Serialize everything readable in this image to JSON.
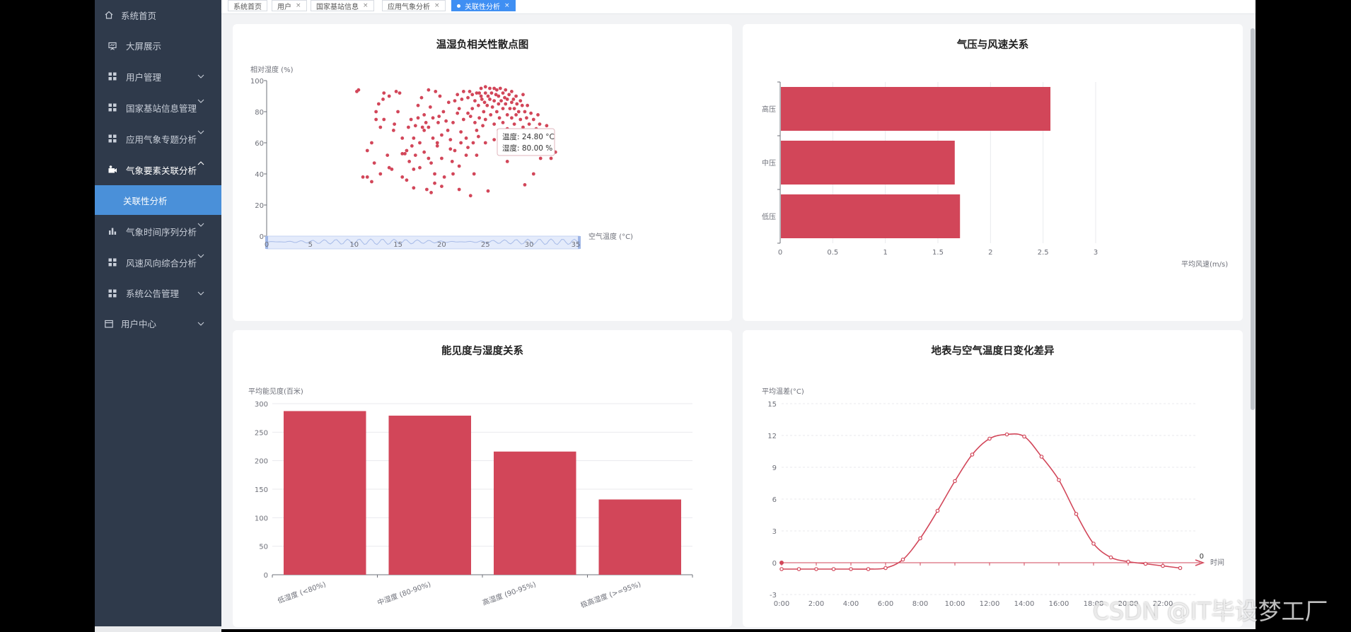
{
  "sidebar": {
    "items": [
      {
        "label": "系统首页",
        "icon": "home-icon",
        "chevron": false
      },
      {
        "label": "大屏展示",
        "icon": "presentation-icon",
        "chevron": false
      },
      {
        "label": "用户管理",
        "icon": "grid-icon",
        "chevron": "down"
      },
      {
        "label": "国家基站信息管理",
        "icon": "grid-icon",
        "chevron": "down"
      },
      {
        "label": "应用气象专题分析",
        "icon": "grid-icon",
        "chevron": "down"
      },
      {
        "label": "气象要素关联分析",
        "icon": "camera-icon",
        "chevron": "up"
      },
      {
        "label": "关联性分析",
        "icon": "",
        "chevron": false
      },
      {
        "label": "气象时间序列分析",
        "icon": "bar-chart-icon",
        "chevron": "down"
      },
      {
        "label": "风速风向综合分析",
        "icon": "grid-icon",
        "chevron": "down"
      },
      {
        "label": "系统公告管理",
        "icon": "grid-icon",
        "chevron": "down"
      },
      {
        "label": "用户中心",
        "icon": "calendar-icon",
        "chevron": "down"
      }
    ]
  },
  "tabs": [
    {
      "label": "系统首页",
      "closable": false,
      "active": false
    },
    {
      "label": "用户",
      "closable": true,
      "active": false
    },
    {
      "label": "国家基站信息",
      "closable": true,
      "active": false
    },
    {
      "label": "应用气象分析",
      "closable": true,
      "active": false
    },
    {
      "label": "关联性分析",
      "closable": true,
      "active": true
    }
  ],
  "close_glyph": "×",
  "colors": {
    "accent": "#3f8ff3",
    "series": "#d24659",
    "sidebar_bg": "#2f3a4b"
  },
  "chart_data": [
    {
      "type": "scatter",
      "title": "温湿负相关性散点图",
      "xlabel": "空气温度 (°C)",
      "ylabel": "相对湿度 (%)",
      "xlim": [
        0,
        35
      ],
      "ylim": [
        0,
        100
      ],
      "xticks": [
        "0",
        "5",
        "10",
        "15",
        "20",
        "25",
        "30",
        "35"
      ],
      "yticks": [
        "0",
        "20",
        "40",
        "60",
        "80",
        "100"
      ],
      "tooltip": {
        "lines": [
          "温度: 24.80 °C",
          "湿度: 80.00 %"
        ]
      },
      "has_datazoom": true,
      "points": [
        [
          10.3,
          93
        ],
        [
          10.5,
          94
        ],
        [
          11,
          38
        ],
        [
          11.5,
          38
        ],
        [
          11.5,
          55
        ],
        [
          12,
          35
        ],
        [
          12,
          60
        ],
        [
          12.3,
          47
        ],
        [
          12.5,
          75
        ],
        [
          12.5,
          80
        ],
        [
          12.8,
          85
        ],
        [
          13,
          70
        ],
        [
          13,
          40
        ],
        [
          13.4,
          75
        ],
        [
          13.3,
          88
        ],
        [
          13.4,
          92
        ],
        [
          13.8,
          52
        ],
        [
          14,
          44
        ],
        [
          14,
          90
        ],
        [
          14.3,
          43
        ],
        [
          14.5,
          68
        ],
        [
          14.8,
          93
        ],
        [
          15.2,
          92
        ],
        [
          15.5,
          63
        ],
        [
          15.5,
          38
        ],
        [
          15.5,
          53
        ],
        [
          15.8,
          53
        ],
        [
          16,
          55
        ],
        [
          16,
          36
        ],
        [
          16.2,
          70
        ],
        [
          16.3,
          48
        ],
        [
          16.5,
          75
        ],
        [
          16.6,
          58
        ],
        [
          16.8,
          43
        ],
        [
          16.8,
          31
        ],
        [
          17,
          71
        ],
        [
          17,
          52
        ],
        [
          17.3,
          76
        ],
        [
          17.3,
          84
        ],
        [
          17.5,
          60
        ],
        [
          17.5,
          44
        ],
        [
          17.8,
          70
        ],
        [
          18,
          54
        ],
        [
          18,
          68
        ],
        [
          18,
          78
        ],
        [
          18.2,
          73
        ],
        [
          18.3,
          30
        ],
        [
          18.5,
          94
        ],
        [
          18.5,
          50
        ],
        [
          18.5,
          70
        ],
        [
          18.8,
          47
        ],
        [
          18.8,
          28
        ],
        [
          19,
          76
        ],
        [
          19,
          63
        ],
        [
          19.2,
          40
        ],
        [
          19.2,
          34
        ],
        [
          19.3,
          93
        ],
        [
          19.5,
          60
        ],
        [
          19.5,
          58
        ],
        [
          19.6,
          73
        ],
        [
          19.7,
          77
        ],
        [
          19.8,
          90
        ],
        [
          20,
          65
        ],
        [
          20,
          50
        ],
        [
          20,
          32
        ],
        [
          20.2,
          80
        ],
        [
          20.3,
          38
        ],
        [
          20.5,
          74
        ],
        [
          20.8,
          86
        ],
        [
          21,
          62
        ],
        [
          21,
          56
        ],
        [
          21.2,
          48
        ],
        [
          21.3,
          73
        ],
        [
          21.3,
          40
        ],
        [
          21.5,
          87
        ],
        [
          21.5,
          55
        ],
        [
          21.8,
          79
        ],
        [
          22,
          45
        ],
        [
          22,
          82
        ],
        [
          22,
          30
        ],
        [
          22.2,
          67
        ],
        [
          22.3,
          88
        ],
        [
          22.5,
          93
        ],
        [
          22.5,
          75
        ],
        [
          22.8,
          52
        ],
        [
          22.8,
          63
        ],
        [
          23,
          89
        ],
        [
          23,
          57
        ],
        [
          23,
          79
        ],
        [
          23.2,
          93
        ],
        [
          23.3,
          77
        ],
        [
          23.3,
          26
        ],
        [
          23.5,
          82
        ],
        [
          23.5,
          91
        ],
        [
          23.6,
          60
        ],
        [
          23.7,
          40
        ],
        [
          23.8,
          87
        ],
        [
          24,
          52
        ],
        [
          24,
          92
        ],
        [
          24,
          68
        ],
        [
          24.2,
          84
        ],
        [
          24.3,
          76
        ],
        [
          24.3,
          92
        ],
        [
          24.5,
          90
        ],
        [
          24.5,
          95
        ],
        [
          24.6,
          88
        ],
        [
          24.7,
          71
        ],
        [
          24.8,
          80
        ],
        [
          24.9,
          86
        ],
        [
          25,
          96
        ],
        [
          25,
          60
        ],
        [
          25,
          92
        ],
        [
          25,
          75
        ],
        [
          25.2,
          84
        ],
        [
          25.3,
          90
        ],
        [
          25.3,
          29
        ],
        [
          25.5,
          88
        ],
        [
          25.5,
          95
        ],
        [
          25.6,
          78
        ],
        [
          25.7,
          92
        ],
        [
          25.8,
          83
        ],
        [
          26,
          95
        ],
        [
          26,
          62
        ],
        [
          26,
          87
        ],
        [
          26,
          72
        ],
        [
          26.2,
          91
        ],
        [
          26.3,
          80
        ],
        [
          26.3,
          94
        ],
        [
          26.5,
          85
        ],
        [
          26.5,
          90
        ],
        [
          26.5,
          68
        ],
        [
          26.6,
          76
        ],
        [
          26.7,
          95
        ],
        [
          26.8,
          87
        ],
        [
          27,
          82
        ],
        [
          27,
          92
        ],
        [
          27,
          58
        ],
        [
          27,
          73
        ],
        [
          27.2,
          89
        ],
        [
          27.3,
          85
        ],
        [
          27.3,
          94
        ],
        [
          27.5,
          78
        ],
        [
          27.5,
          88
        ],
        [
          27.5,
          69
        ],
        [
          27.5,
          48
        ],
        [
          27.7,
          91
        ],
        [
          27.8,
          82
        ],
        [
          28,
          86
        ],
        [
          28,
          76
        ],
        [
          28,
          93
        ],
        [
          28,
          64
        ],
        [
          28.2,
          88
        ],
        [
          28.3,
          82
        ],
        [
          28.3,
          72
        ],
        [
          28.5,
          90
        ],
        [
          28.5,
          78
        ],
        [
          28.5,
          60
        ],
        [
          28.6,
          85
        ],
        [
          28.7,
          67
        ],
        [
          28.8,
          80
        ],
        [
          29,
          87
        ],
        [
          29,
          75
        ],
        [
          29,
          62
        ],
        [
          29,
          55
        ],
        [
          29.2,
          84
        ],
        [
          29.3,
          70
        ],
        [
          29.3,
          91
        ],
        [
          29.5,
          80
        ],
        [
          29.5,
          65
        ],
        [
          29.5,
          33
        ],
        [
          29.7,
          76
        ],
        [
          29.8,
          84
        ],
        [
          30,
          72
        ],
        [
          30,
          67
        ],
        [
          30,
          57
        ],
        [
          30.2,
          79
        ],
        [
          30.3,
          64
        ],
        [
          30.5,
          75
        ],
        [
          30.5,
          40
        ],
        [
          30.8,
          69
        ],
        [
          30.8,
          55
        ],
        [
          31,
          78
        ],
        [
          31,
          62
        ],
        [
          31.2,
          72
        ],
        [
          31.3,
          50
        ],
        [
          31.5,
          68
        ],
        [
          31.5,
          60
        ],
        [
          31.8,
          64
        ],
        [
          32,
          66
        ],
        [
          32,
          71
        ],
        [
          32.2,
          57
        ],
        [
          32.3,
          62
        ],
        [
          32.5,
          50
        ],
        [
          33,
          54
        ],
        [
          14.6,
          72
        ],
        [
          15,
          80
        ],
        [
          16.8,
          63
        ],
        [
          18.7,
          83
        ],
        [
          20.7,
          68
        ],
        [
          22.2,
          60
        ],
        [
          24.2,
          64
        ],
        [
          26.8,
          65
        ],
        [
          23.8,
          73
        ],
        [
          21.8,
          91
        ],
        [
          17.7,
          89
        ]
      ]
    },
    {
      "type": "bar",
      "orientation": "horizontal",
      "title": "气压与风速关系",
      "categories": [
        "高压",
        "中压",
        "低压"
      ],
      "values": [
        2.57,
        1.66,
        1.71
      ],
      "xlabel": "平均风速(m/s)",
      "xlim": [
        0,
        3
      ],
      "xticks": [
        "0",
        "0.5",
        "1",
        "1.5",
        "2",
        "2.5",
        "3"
      ]
    },
    {
      "type": "bar",
      "title": "能见度与湿度关系",
      "categories": [
        "低湿度 (<80%)",
        "中湿度 (80-90%)",
        "高湿度 (90-95%)",
        "极高湿度 (>=95%)"
      ],
      "values": [
        287,
        279,
        216,
        132
      ],
      "ylabel": "平均能见度(百米)",
      "ylim": [
        0,
        300
      ],
      "yticks": [
        "0",
        "50",
        "100",
        "150",
        "200",
        "250",
        "300"
      ]
    },
    {
      "type": "line",
      "title": "地表与空气温度日变化差异",
      "ylabel": "平均温差(°C)",
      "xlabel": "时间",
      "ylim": [
        -3,
        15
      ],
      "yticks": [
        "-3",
        "0",
        "3",
        "6",
        "9",
        "12",
        "15"
      ],
      "xticks": [
        "0:00",
        "2:00",
        "4:00",
        "6:00",
        "8:00",
        "10:00",
        "12:00",
        "14:00",
        "16:00",
        "18:00",
        "20:00",
        "22:00"
      ],
      "x": [
        0,
        1,
        2,
        3,
        4,
        5,
        6,
        7,
        8,
        9,
        10,
        11,
        12,
        13,
        14,
        15,
        16,
        17,
        18,
        19,
        20,
        21,
        22,
        23
      ],
      "values": [
        -0.6,
        -0.6,
        -0.6,
        -0.6,
        -0.6,
        -0.6,
        -0.5,
        0.3,
        2.3,
        4.9,
        7.7,
        10.2,
        11.7,
        12.1,
        11.9,
        10.0,
        7.8,
        4.6,
        1.8,
        0.5,
        0.1,
        -0.1,
        -0.3,
        -0.5
      ],
      "zero_marker_label": "0"
    }
  ],
  "watermark": "CSDN @IT毕设梦工厂"
}
